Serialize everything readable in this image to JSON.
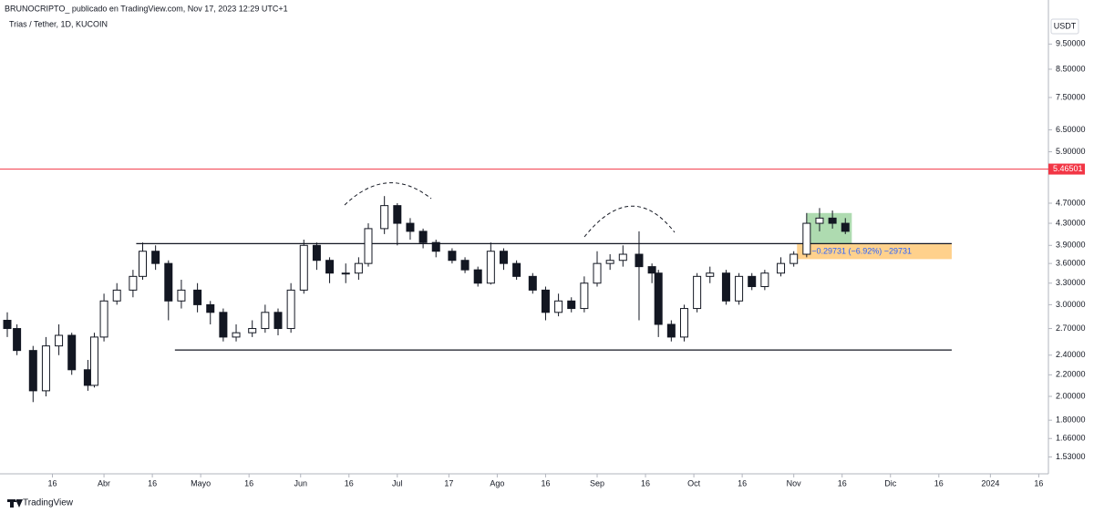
{
  "chart_data": {
    "type": "candlestick",
    "source": "BRUNOCRIPTO_ publicado en TradingView.com, Nov 17, 2023 12:29 UTC+1",
    "title": "Trias / Tether, 1D, KUCOIN",
    "currency": "USDT",
    "footer": "TradingView",
    "log_scale": true,
    "up_color": "#ffffff",
    "down_color": "#131722",
    "xlim": [
      61,
      384
    ],
    "ylim": [
      1.42,
      10.65
    ],
    "xticks": [
      {
        "value": 75,
        "label": "16"
      },
      {
        "value": 91,
        "label": "Abr"
      },
      {
        "value": 106,
        "label": "16"
      },
      {
        "value": 121,
        "label": "Mayo"
      },
      {
        "value": 136,
        "label": "16"
      },
      {
        "value": 152,
        "label": "Jun"
      },
      {
        "value": 167,
        "label": "16"
      },
      {
        "value": 182,
        "label": "Jul"
      },
      {
        "value": 198,
        "label": "17"
      },
      {
        "value": 213,
        "label": "Ago"
      },
      {
        "value": 228,
        "label": "16"
      },
      {
        "value": 244,
        "label": "Sep"
      },
      {
        "value": 259,
        "label": "16"
      },
      {
        "value": 274,
        "label": "Oct"
      },
      {
        "value": 289,
        "label": "16"
      },
      {
        "value": 305,
        "label": "Nov"
      },
      {
        "value": 320,
        "label": "16"
      },
      {
        "value": 335,
        "label": "Dic"
      },
      {
        "value": 350,
        "label": "16"
      },
      {
        "value": 366,
        "label": "2024"
      },
      {
        "value": 381,
        "label": "16"
      }
    ],
    "yticks": [
      {
        "value": 9.5,
        "label": "9.50000"
      },
      {
        "value": 8.5,
        "label": "8.50000"
      },
      {
        "value": 7.5,
        "label": "7.50000"
      },
      {
        "value": 6.5,
        "label": "6.50000"
      },
      {
        "value": 5.9,
        "label": "5.90000"
      },
      {
        "value": 4.7,
        "label": "4.70000"
      },
      {
        "value": 4.3,
        "label": "4.30000"
      },
      {
        "value": 3.9,
        "label": "3.90000"
      },
      {
        "value": 3.6,
        "label": "3.60000"
      },
      {
        "value": 3.3,
        "label": "3.30000"
      },
      {
        "value": 3.0,
        "label": "3.00000"
      },
      {
        "value": 2.7,
        "label": "2.70000"
      },
      {
        "value": 2.4,
        "label": "2.40000"
      },
      {
        "value": 2.2,
        "label": "2.20000"
      },
      {
        "value": 2.0,
        "label": "2.00000"
      },
      {
        "value": 1.8,
        "label": "1.80000"
      },
      {
        "value": 1.66,
        "label": "1.66000"
      },
      {
        "value": 1.53,
        "label": "1.53000"
      }
    ],
    "ohlc": [
      [
        61,
        2.8,
        2.9,
        2.6,
        2.7
      ],
      [
        64,
        2.7,
        2.75,
        2.4,
        2.45
      ],
      [
        69,
        2.45,
        2.5,
        1.95,
        2.05
      ],
      [
        73,
        2.05,
        2.6,
        2.0,
        2.5
      ],
      [
        77,
        2.5,
        2.75,
        2.4,
        2.62
      ],
      [
        81,
        2.62,
        2.65,
        2.2,
        2.25
      ],
      [
        86,
        2.25,
        2.35,
        2.05,
        2.1
      ],
      [
        88,
        2.1,
        2.65,
        2.08,
        2.6
      ],
      [
        91,
        2.6,
        3.15,
        2.55,
        3.05
      ],
      [
        95,
        3.05,
        3.3,
        3.0,
        3.2
      ],
      [
        100,
        3.2,
        3.5,
        3.1,
        3.4
      ],
      [
        103,
        3.4,
        3.95,
        3.35,
        3.8
      ],
      [
        107,
        3.8,
        3.9,
        3.5,
        3.6
      ],
      [
        111,
        3.6,
        3.65,
        2.8,
        3.05
      ],
      [
        115,
        3.05,
        3.35,
        2.95,
        3.2
      ],
      [
        120,
        3.2,
        3.3,
        2.9,
        3.0
      ],
      [
        124,
        3.0,
        3.05,
        2.75,
        2.9
      ],
      [
        128,
        2.9,
        2.95,
        2.55,
        2.6
      ],
      [
        132,
        2.6,
        2.75,
        2.55,
        2.65
      ],
      [
        137,
        2.65,
        2.8,
        2.6,
        2.7
      ],
      [
        141,
        2.7,
        3.0,
        2.65,
        2.9
      ],
      [
        145,
        2.9,
        2.95,
        2.62,
        2.7
      ],
      [
        149,
        2.7,
        3.3,
        2.65,
        3.2
      ],
      [
        153,
        3.2,
        4.0,
        3.15,
        3.9
      ],
      [
        157,
        3.9,
        3.95,
        3.5,
        3.65
      ],
      [
        161,
        3.65,
        3.7,
        3.3,
        3.45
      ],
      [
        166,
        3.45,
        3.6,
        3.3,
        3.45
      ],
      [
        170,
        3.45,
        3.7,
        3.35,
        3.6
      ],
      [
        173,
        3.6,
        4.3,
        3.55,
        4.2
      ],
      [
        178,
        4.2,
        4.85,
        4.1,
        4.65
      ],
      [
        182,
        4.65,
        4.7,
        3.9,
        4.3
      ],
      [
        186,
        4.3,
        4.4,
        4.0,
        4.15
      ],
      [
        190,
        4.15,
        4.2,
        3.85,
        3.95
      ],
      [
        194,
        3.95,
        4.0,
        3.7,
        3.8
      ],
      [
        199,
        3.8,
        3.85,
        3.6,
        3.65
      ],
      [
        203,
        3.65,
        3.7,
        3.45,
        3.5
      ],
      [
        207,
        3.5,
        3.55,
        3.25,
        3.3
      ],
      [
        211,
        3.3,
        3.95,
        3.28,
        3.8
      ],
      [
        215,
        3.8,
        3.85,
        3.5,
        3.6
      ],
      [
        219,
        3.6,
        3.65,
        3.35,
        3.4
      ],
      [
        224,
        3.4,
        3.45,
        3.15,
        3.2
      ],
      [
        228,
        3.2,
        3.25,
        2.8,
        2.9
      ],
      [
        232,
        2.9,
        3.15,
        2.85,
        3.05
      ],
      [
        236,
        3.05,
        3.1,
        2.9,
        2.95
      ],
      [
        240,
        2.95,
        3.4,
        2.9,
        3.3
      ],
      [
        244,
        3.3,
        3.8,
        3.25,
        3.6
      ],
      [
        248,
        3.6,
        3.75,
        3.5,
        3.65
      ],
      [
        252,
        3.65,
        3.9,
        3.55,
        3.75
      ],
      [
        257,
        3.75,
        4.15,
        2.8,
        3.55
      ],
      [
        261,
        3.55,
        3.6,
        3.3,
        3.45
      ],
      [
        263,
        3.45,
        3.5,
        2.6,
        2.75
      ],
      [
        267,
        2.75,
        2.8,
        2.55,
        2.6
      ],
      [
        271,
        2.6,
        3.0,
        2.55,
        2.95
      ],
      [
        275,
        2.95,
        3.45,
        2.9,
        3.4
      ],
      [
        279,
        3.4,
        3.55,
        3.3,
        3.45
      ],
      [
        284,
        3.45,
        3.5,
        3.0,
        3.05
      ],
      [
        288,
        3.05,
        3.45,
        3.0,
        3.4
      ],
      [
        292,
        3.4,
        3.45,
        3.2,
        3.25
      ],
      [
        296,
        3.25,
        3.5,
        3.2,
        3.45
      ],
      [
        301,
        3.45,
        3.7,
        3.4,
        3.6
      ],
      [
        305,
        3.6,
        3.8,
        3.55,
        3.75
      ],
      [
        309,
        3.75,
        4.5,
        3.7,
        4.3
      ],
      [
        313,
        4.3,
        4.6,
        4.15,
        4.4
      ],
      [
        317,
        4.4,
        4.55,
        4.2,
        4.3
      ],
      [
        321,
        4.3,
        4.4,
        4.1,
        4.15
      ]
    ],
    "hlines": [
      {
        "value": 5.46501,
        "color": "#f23645"
      }
    ],
    "trend_lines": [
      {
        "from": 101,
        "to": 354,
        "value": 3.93,
        "color": "#131722"
      },
      {
        "from": 113,
        "to": 354,
        "value": 2.455,
        "color": "#131722"
      }
    ],
    "boxes": [
      {
        "from": 309,
        "to": 323,
        "top": 4.5,
        "bottom": 3.92,
        "color": "rgba(76,175,80,0.45)"
      },
      {
        "from": 306,
        "to": 354,
        "top": 3.92,
        "bottom": 3.67,
        "color": "rgba(255,152,0,0.45)"
      }
    ],
    "measure_label": "−0.29731 (−6.92%) −29731"
  }
}
